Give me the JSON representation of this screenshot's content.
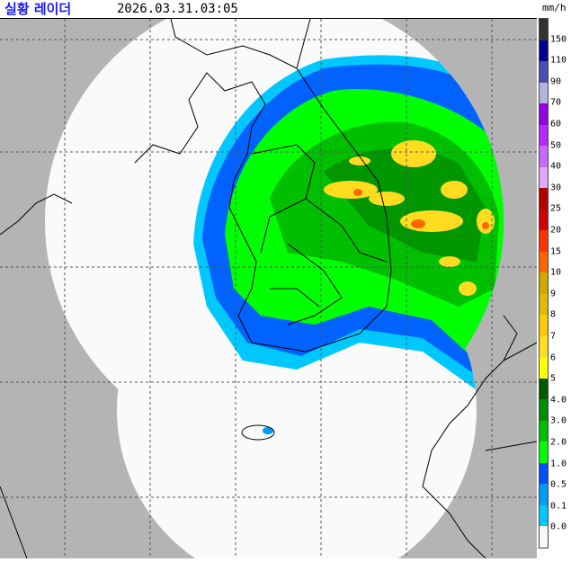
{
  "header": {
    "title": "실황 레이더",
    "timestamp": "2026.03.31.03:05",
    "unit": "mm/h"
  },
  "legend": {
    "colors": [
      "#333333",
      "#000390",
      "#4c4eb1",
      "#b3b4de",
      "#9300e4",
      "#b329ff",
      "#c969ff",
      "#e0a9ff",
      "#b40000",
      "#d20000",
      "#ff3200",
      "#ff6600",
      "#ccaa00",
      "#e0b900",
      "#f9cd00",
      "#ffdc1f",
      "#ffff00",
      "#005a00",
      "#008c00",
      "#00be00",
      "#00ff00",
      "#0050ff",
      "#009bf5",
      "#00c8ff",
      "#f8f8f8"
    ],
    "labels": [
      "150",
      "110",
      "90",
      "70",
      "60",
      "50",
      "40",
      "30",
      "25",
      "20",
      "15",
      "10",
      "9",
      "8",
      "7",
      "6",
      "5",
      "4.0",
      "3.0",
      "2.0",
      "1.0",
      "0.5",
      "0.1",
      "0.0"
    ]
  },
  "map": {
    "background_color": "#b4b4b4",
    "coverage_color": "#fafafa"
  }
}
